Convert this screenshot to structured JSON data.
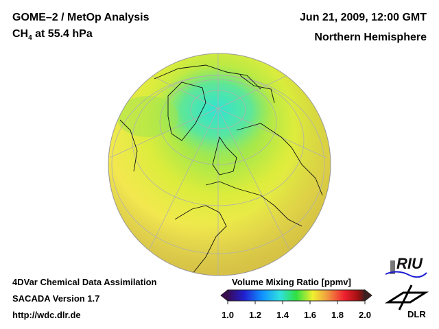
{
  "header": {
    "title": "GOME–2 / MetOp Analysis",
    "species": "CH",
    "species_sub": "4",
    "level": " at 55.4 hPa",
    "date": "Jun 21, 2009, 12:00 GMT",
    "region": "Northern Hemisphere"
  },
  "footer": {
    "line1": "4DVar Chemical Data Assimilation",
    "line2": "SACADA Version 1.7",
    "line3": "http://wdc.dlr.de"
  },
  "colorbar": {
    "title": "Volume Mixing Ratio [ppmv]",
    "ticks": [
      "1.0",
      "1.2",
      "1.4",
      "1.6",
      "1.8",
      "2.0"
    ],
    "range": [
      1.0,
      2.0
    ],
    "colors": [
      "#3a0a55",
      "#2020d0",
      "#1090ff",
      "#30e0e0",
      "#30e040",
      "#f0f030",
      "#f0a040",
      "#f02030",
      "#a01010",
      "#402020"
    ]
  },
  "logos": {
    "riu": "RIU",
    "dlr": "DLR"
  }
}
